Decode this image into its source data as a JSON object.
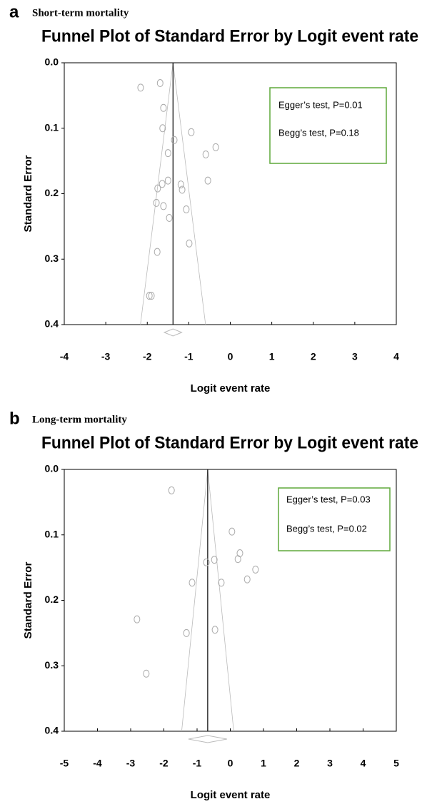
{
  "chart_data": [
    {
      "type": "scatter",
      "panel": "a",
      "subtitle": "Short-term mortality",
      "title": "Funnel Plot of Standard Error by Logit event rate",
      "xlabel": "Logit event rate",
      "ylabel": "Standard Error",
      "x": [
        -2.16,
        -1.69,
        -1.61,
        -1.63,
        -1.35,
        -0.94,
        -0.35,
        -0.59,
        -1.5,
        -0.54,
        -1.5,
        -1.64,
        -1.75,
        -1.19,
        -1.16,
        -1.78,
        -1.61,
        -1.06,
        -1.47,
        -0.99,
        -1.76,
        -1.95,
        -1.9
      ],
      "y": [
        0.038,
        0.031,
        0.069,
        0.1,
        0.118,
        0.106,
        0.129,
        0.14,
        0.138,
        0.18,
        0.18,
        0.185,
        0.192,
        0.186,
        0.194,
        0.214,
        0.219,
        0.224,
        0.237,
        0.276,
        0.289,
        0.356,
        0.356
      ],
      "summary": -1.38,
      "summary_ci": [
        -1.59,
        -1.17
      ],
      "xlim": [
        -4,
        4
      ],
      "xticks": [
        -4,
        -3,
        -2,
        -1,
        0,
        1,
        2,
        3,
        4
      ],
      "ylim": [
        0,
        0.4
      ],
      "yticks": [
        {
          "value": 0,
          "label": "0.0"
        },
        0.1,
        0.2,
        0.3,
        0.4
      ],
      "y_inverted": true,
      "marker_color": "#aaaaaa",
      "box_color": "#5fa83a",
      "annotations": [
        "Egger’s test, P=0.01",
        "Begg’s test, P=0.18"
      ]
    },
    {
      "type": "scatter",
      "panel": "b",
      "subtitle": "Long-term mortality",
      "title": "Funnel Plot of Standard Error by Logit event rate",
      "xlabel": "Logit event rate",
      "ylabel": "Standard Error",
      "x": [
        -1.77,
        0.05,
        0.29,
        0.23,
        0.76,
        0.51,
        -0.48,
        -0.72,
        -0.27,
        -1.15,
        -0.46,
        -1.32,
        -2.81,
        -2.53
      ],
      "y": [
        0.032,
        0.095,
        0.128,
        0.137,
        0.153,
        0.168,
        0.138,
        0.142,
        0.173,
        0.173,
        0.245,
        0.25,
        0.229,
        0.312
      ],
      "summary": -0.68,
      "summary_ci": [
        -1.26,
        -0.1
      ],
      "xlim": [
        -5,
        5
      ],
      "xticks": [
        -5,
        -4,
        -3,
        -2,
        -1,
        0,
        1,
        2,
        3,
        4,
        5
      ],
      "ylim": [
        0,
        0.4
      ],
      "yticks": [
        {
          "value": 0,
          "label": "0.0"
        },
        0.1,
        0.2,
        0.3,
        0.4
      ],
      "y_inverted": true,
      "marker_color": "#aaaaaa",
      "box_color": "#5fa83a",
      "annotations": [
        "Egger’s test, P=0.03",
        "Begg’s test, P=0.02"
      ]
    }
  ]
}
